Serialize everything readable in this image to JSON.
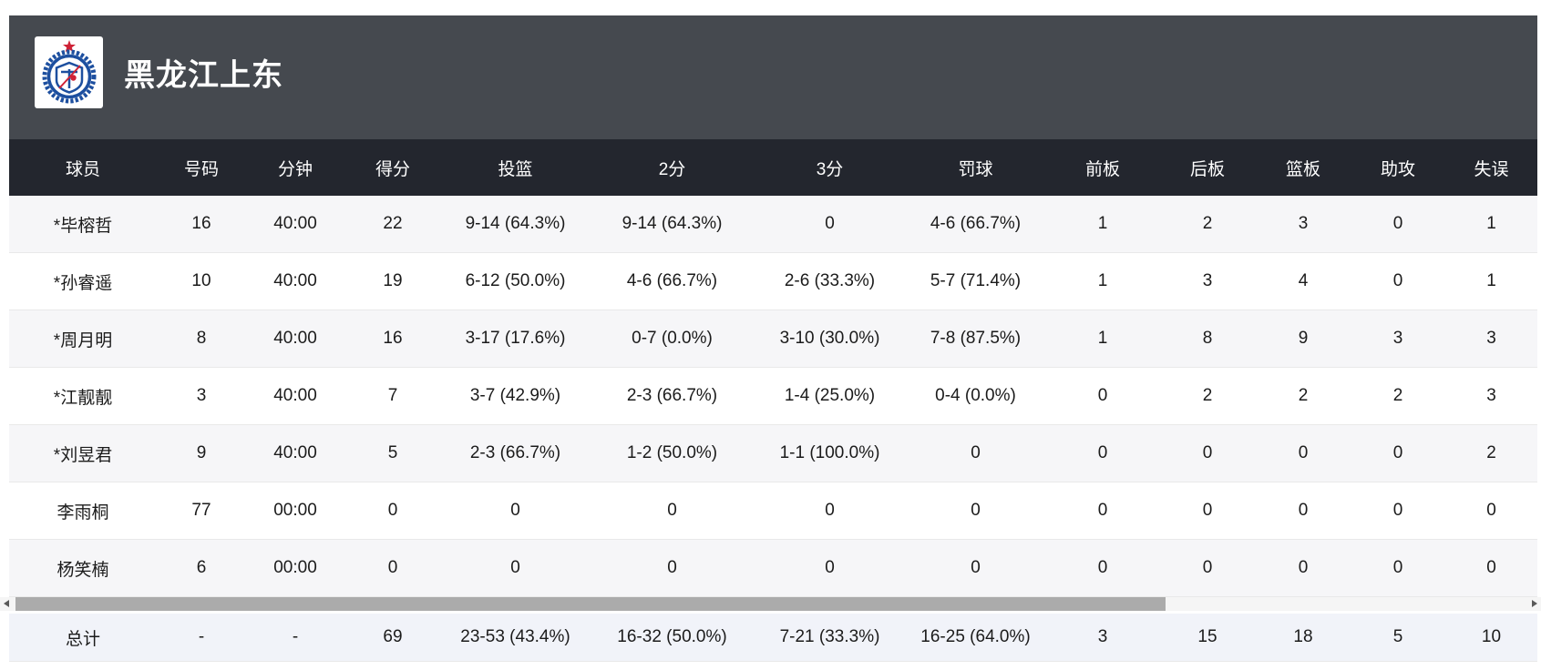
{
  "team": {
    "name": "黑龙江上东"
  },
  "logo": {
    "icon": "team-crest-shield-star-emblem"
  },
  "table": {
    "columns": [
      "球员",
      "号码",
      "分钟",
      "得分",
      "投篮",
      "2分",
      "3分",
      "罚球",
      "前板",
      "后板",
      "篮板",
      "助攻",
      "失误"
    ],
    "rows": [
      [
        "*毕榕哲",
        "16",
        "40:00",
        "22",
        "9-14 (64.3%)",
        "9-14 (64.3%)",
        "0",
        "4-6 (66.7%)",
        "1",
        "2",
        "3",
        "0",
        "1"
      ],
      [
        "*孙睿遥",
        "10",
        "40:00",
        "19",
        "6-12 (50.0%)",
        "4-6 (66.7%)",
        "2-6 (33.3%)",
        "5-7 (71.4%)",
        "1",
        "3",
        "4",
        "0",
        "1"
      ],
      [
        "*周月明",
        "8",
        "40:00",
        "16",
        "3-17 (17.6%)",
        "0-7 (0.0%)",
        "3-10 (30.0%)",
        "7-8 (87.5%)",
        "1",
        "8",
        "9",
        "3",
        "3"
      ],
      [
        "*江靓靓",
        "3",
        "40:00",
        "7",
        "3-7 (42.9%)",
        "2-3 (66.7%)",
        "1-4 (25.0%)",
        "0-4 (0.0%)",
        "0",
        "2",
        "2",
        "2",
        "3"
      ],
      [
        "*刘昱君",
        "9",
        "40:00",
        "5",
        "2-3 (66.7%)",
        "1-2 (50.0%)",
        "1-1 (100.0%)",
        "0",
        "0",
        "0",
        "0",
        "0",
        "2"
      ],
      [
        "李雨桐",
        "77",
        "00:00",
        "0",
        "0",
        "0",
        "0",
        "0",
        "0",
        "0",
        "0",
        "0",
        "0"
      ],
      [
        "杨笑楠",
        "6",
        "00:00",
        "0",
        "0",
        "0",
        "0",
        "0",
        "0",
        "0",
        "0",
        "0",
        "0"
      ]
    ],
    "total": [
      "总计",
      "-",
      "-",
      "69",
      "23-53 (43.4%)",
      "16-32 (50.0%)",
      "7-21 (33.3%)",
      "16-25 (64.0%)",
      "3",
      "15",
      "18",
      "5",
      "10"
    ]
  },
  "colors": {
    "band_bg": "#45494f",
    "header_bg": "#23262e",
    "header_text": "#ffffff",
    "row_alt_bg": "#f6f6f8",
    "row_bg": "#ffffff",
    "total_row_bg": "#f1f3f9",
    "cell_text": "#1b1b1b",
    "border": "#e9e9e9",
    "scroll_thumb": "#ababab",
    "scroll_track": "#f5f5f5",
    "logo_blue": "#1d4f9f",
    "logo_red": "#cf2236"
  }
}
